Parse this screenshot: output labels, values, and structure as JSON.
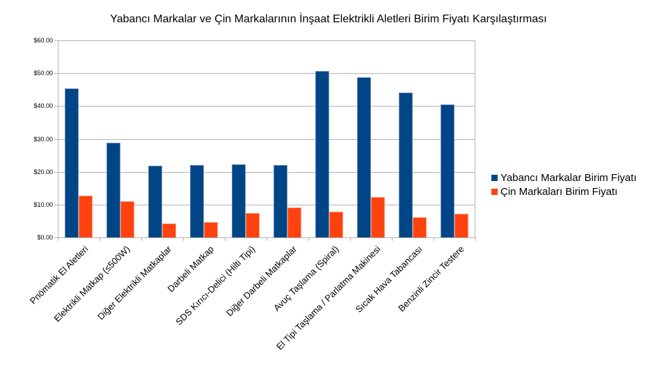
{
  "chart_data": {
    "type": "bar",
    "title": "Yabancı Markalar ve Çin Markalarının İnşaat Elektrikli Aletleri Birim Fiyatı Karşılaştırması",
    "xlabel": "",
    "ylabel": "",
    "ylim": [
      0,
      60
    ],
    "yticks": [
      "$0.00",
      "$10.00",
      "$20.00",
      "$30.00",
      "$40.00",
      "$50.00",
      "$60.00"
    ],
    "grid": true,
    "legend_position": "right",
    "categories": [
      "Pnömatik El Aletleri",
      "Elektrikli Matkap (≤500W)",
      "Diğer Elektrikli Matkaplar",
      "Darbeli Matkap",
      "SDS Kırıcı-Delici (Hilti Tipi)",
      "Diğer Darbeli Matkaplar",
      "Avuç Taşlama (Spiral)",
      "El Tipi Taşlama / Parlatma Makinesi",
      "Sıcak Hava Tabancası",
      "Benzinli Zincir Testere"
    ],
    "series": [
      {
        "name": "Yabancı Markalar Birim Fiyatı",
        "color": "#004586",
        "values": [
          45.3,
          28.8,
          21.8,
          22.0,
          22.3,
          22.0,
          50.7,
          48.7,
          44.0,
          40.4
        ]
      },
      {
        "name": "Çin Markaları Birim Fiyatı",
        "color": "#ff420e",
        "values": [
          12.7,
          11.0,
          4.2,
          4.6,
          7.4,
          9.1,
          7.8,
          12.2,
          6.2,
          7.2
        ]
      }
    ]
  }
}
